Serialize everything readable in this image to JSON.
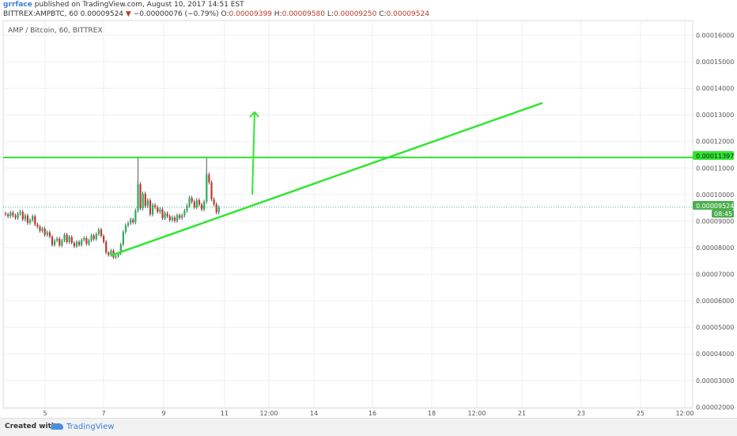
{
  "header": {
    "author": "grrface",
    "published_text": "published on TradingView.com, August 10, 2017 14:51 EST",
    "symbol": "BITTREX:AMPBTC, 60",
    "last": "0.00009524",
    "change_arrow": "▼",
    "change": "−0.00000076 (−0.79%)",
    "o_label": "O:",
    "o_value": "0.00009399",
    "h_label": "H:",
    "h_value": "0.00009580",
    "l_label": "L:",
    "l_value": "0.00009250",
    "c_label": "C:",
    "c_value": "0.00009524"
  },
  "chart_title": "AMP / Bitcoin, 60, BITTREX",
  "price_tags": {
    "resistance": "0.00011397",
    "last_price": "0.00009524",
    "countdown": "08:45"
  },
  "footer": {
    "created_with": "Created with",
    "brand": "TradingView"
  },
  "colors": {
    "up": "#27ae60",
    "down": "#c0392b",
    "drawing": "#32e632",
    "grid": "#eceff2",
    "tag_bg": "#4caf50"
  },
  "chart_data": {
    "type": "candlestick",
    "title": "AMP / Bitcoin, 60, BITTREX",
    "xlabel": "",
    "ylabel": "",
    "x_tick_labels": [
      "5",
      "7",
      "9",
      "11",
      "12:00",
      "14",
      "16",
      "18",
      "12:00",
      "21",
      "23",
      "25",
      "12:00"
    ],
    "y_tick_labels": [
      "0.00016000",
      "0.00015000",
      "0.00014000",
      "0.00013000",
      "0.00012000",
      "0.00011000",
      "0.00010000",
      "0.00009000",
      "0.00008000",
      "0.00007000",
      "0.00006000",
      "0.00005000",
      "0.00004000",
      "0.00003000",
      "0.00002000"
    ],
    "ylim": [
      1.95e-05,
      0.0001655
    ],
    "grid": true,
    "last_price": 9.524e-05,
    "series": [
      {
        "kind": "candles_approx",
        "close": [
          9.25e-05,
          9.18e-05,
          9.32e-05,
          9.21e-05,
          9.12e-05,
          9.28e-05,
          9.35e-05,
          9.06e-05,
          9.21e-05,
          8.93e-05,
          9.04e-05,
          9.18e-05,
          8.87e-05,
          8.79e-05,
          8.63e-05,
          8.72e-05,
          8.48e-05,
          8.58e-05,
          8.42e-05,
          8.1e-05,
          8.26e-05,
          8.34e-05,
          8.08e-05,
          8.27e-05,
          8.49e-05,
          8.21e-05,
          8.4e-05,
          8.18e-05,
          8.05e-05,
          8.22e-05,
          8.1e-05,
          8.29e-05,
          8.36e-05,
          8.14e-05,
          8.28e-05,
          8.46e-05,
          8.32e-05,
          8.51e-05,
          8.68e-05,
          8.44e-05,
          8.22e-05,
          7.81e-05,
          7.72e-05,
          7.89e-05,
          7.63e-05,
          7.68e-05,
          7.78e-05,
          8.12e-05,
          8.59e-05,
          8.84e-05,
          8.92e-05,
          9.06e-05,
          8.95e-05,
          9.4e-05,
          0.0001039,
          9.48e-05,
          0.0001003,
          9.57e-05,
          9.78e-05,
          9.25e-05,
          9.6e-05,
          9.52e-05,
          9.35e-05,
          9.44e-05,
          9.11e-05,
          9.29e-05,
          9.18e-05,
          9.04e-05,
          9.14e-05,
          9.01e-05,
          9.22e-05,
          9.12e-05,
          9.21e-05,
          9.39e-05,
          9.58e-05,
          9.87e-05,
          9.73e-05,
          9.52e-05,
          9.79e-05,
          9.62e-05,
          9.44e-05,
          9.73e-05,
          0.0001075,
          0.0001046,
          9.82e-05,
          9.63e-05,
          9.33e-05,
          9.52e-05
        ]
      }
    ],
    "drawings": [
      {
        "type": "horizontal_line",
        "price": 0.00011397
      },
      {
        "type": "trend_line",
        "from": {
          "x": "7",
          "price": 7.7e-05
        },
        "to": {
          "x": "21",
          "price": 0.0001345
        }
      },
      {
        "type": "arrow",
        "from_price": 0.0001,
        "to_price": 0.000131
      }
    ]
  }
}
